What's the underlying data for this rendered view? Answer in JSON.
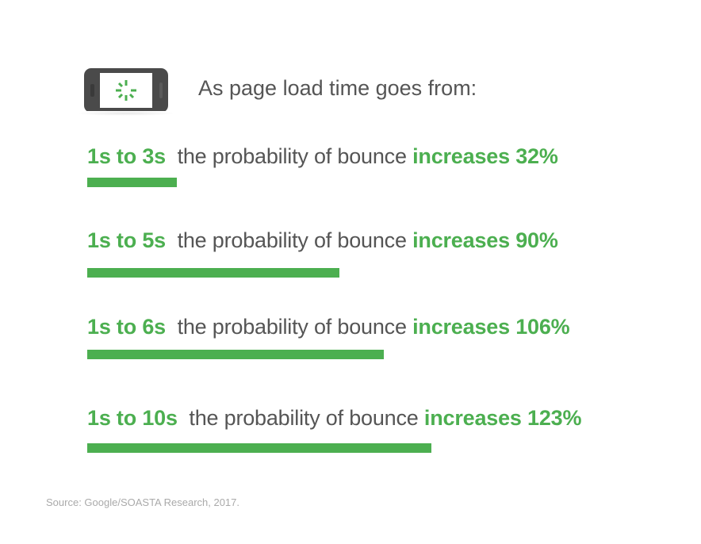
{
  "header": {
    "title": "As page load time goes from:",
    "icon": "phone-loading-spinner-icon"
  },
  "colors": {
    "accent": "#4caf50",
    "text": "#555555",
    "source": "#aaaaaa"
  },
  "chart_data": {
    "type": "bar",
    "orientation": "horizontal",
    "categories": [
      "1s to 3s",
      "1s to 5s",
      "1s to 6s",
      "1s to 10s"
    ],
    "middle_text": "the probability of bounce",
    "value_prefix": "increases",
    "values": [
      32,
      90,
      106,
      123
    ],
    "value_labels": [
      "32%",
      "90%",
      "106%",
      "123%"
    ],
    "unit": "%"
  },
  "source": "Source: Google/SOASTA Research, 2017."
}
